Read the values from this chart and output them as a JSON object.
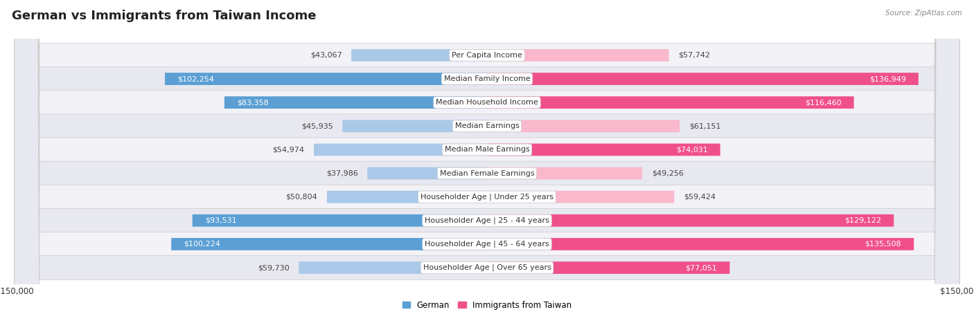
{
  "title": "German vs Immigrants from Taiwan Income",
  "source": "Source: ZipAtlas.com",
  "categories": [
    "Per Capita Income",
    "Median Family Income",
    "Median Household Income",
    "Median Earnings",
    "Median Male Earnings",
    "Median Female Earnings",
    "Householder Age | Under 25 years",
    "Householder Age | 25 - 44 years",
    "Householder Age | 45 - 64 years",
    "Householder Age | Over 65 years"
  ],
  "german_values": [
    43067,
    102254,
    83358,
    45935,
    54974,
    37986,
    50804,
    93531,
    100224,
    59730
  ],
  "taiwan_values": [
    57742,
    136949,
    116460,
    61151,
    74031,
    49256,
    59424,
    129122,
    135508,
    77051
  ],
  "german_labels": [
    "$43,067",
    "$102,254",
    "$83,358",
    "$45,935",
    "$54,974",
    "$37,986",
    "$50,804",
    "$93,531",
    "$100,224",
    "$59,730"
  ],
  "taiwan_labels": [
    "$57,742",
    "$136,949",
    "$116,460",
    "$61,151",
    "$74,031",
    "$49,256",
    "$59,424",
    "$129,122",
    "$135,508",
    "$77,051"
  ],
  "german_color_light": "#aac9e8",
  "german_color_dark": "#5b9fd4",
  "taiwan_color_light": "#f9b8cb",
  "taiwan_color_dark": "#f0508a",
  "max_value": 150000,
  "background_color": "#ffffff",
  "row_bg_colors": [
    "#f2f2f7",
    "#e8e8f0"
  ],
  "legend_german": "German",
  "legend_taiwan": "Immigrants from Taiwan",
  "title_fontsize": 13,
  "label_fontsize": 8,
  "category_fontsize": 8,
  "bar_height": 0.52,
  "inside_label_threshold": 65000
}
